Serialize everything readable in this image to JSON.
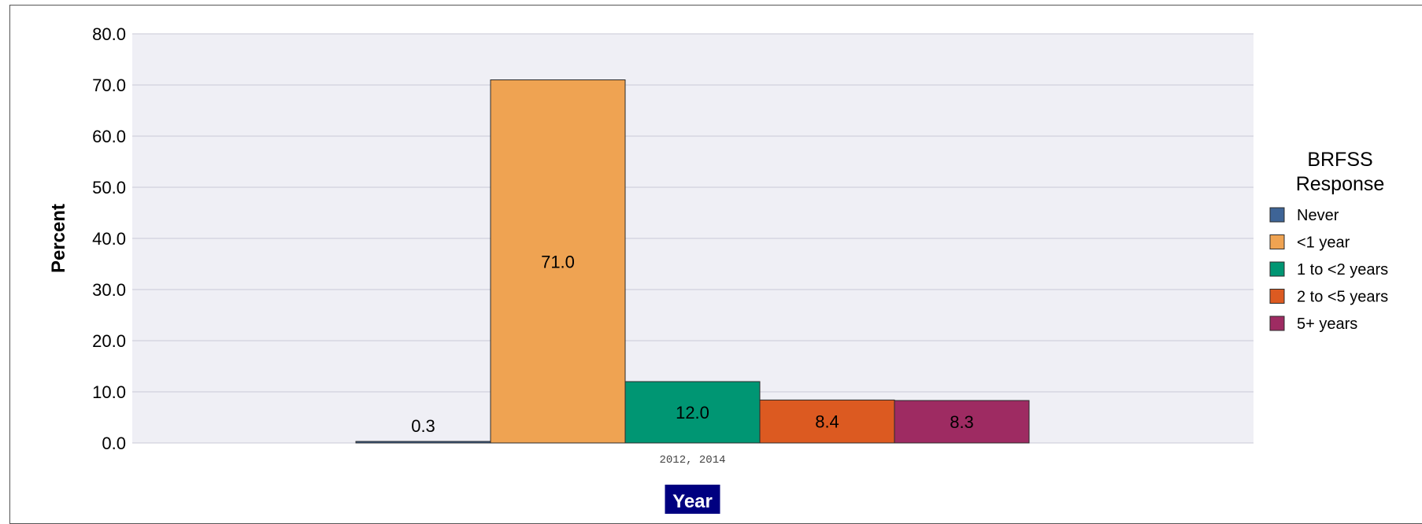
{
  "chart_data": {
    "type": "bar",
    "categories": [
      "2012, 2014"
    ],
    "series": [
      {
        "name": "Never",
        "values": [
          0.3
        ],
        "color": "#3e6496"
      },
      {
        "name": "<1 year",
        "values": [
          71.0
        ],
        "color": "#efa352"
      },
      {
        "name": "1 to <2 years",
        "values": [
          12.0
        ],
        "color": "#009673"
      },
      {
        "name": "2 to <5 years",
        "values": [
          8.4
        ],
        "color": "#dc5a21"
      },
      {
        "name": "5+ years",
        "values": [
          8.3
        ],
        "color": "#9e2b62"
      }
    ],
    "data_labels": [
      "0.3",
      "71.0",
      "12.0",
      "8.4",
      "8.3"
    ],
    "yticks": [
      "0.0",
      "10.0",
      "20.0",
      "30.0",
      "40.0",
      "50.0",
      "60.0",
      "70.0",
      "80.0"
    ],
    "ylim": [
      0,
      80
    ],
    "ylabel": "Percent",
    "xlabel": "Year",
    "legend_title": [
      "BRFSS",
      "Response"
    ],
    "legend_position": "right",
    "grid": true,
    "colors": {
      "plot_background": "#efeff5",
      "grid": "#c9c9d6",
      "xlabel_background": "#000080"
    }
  }
}
